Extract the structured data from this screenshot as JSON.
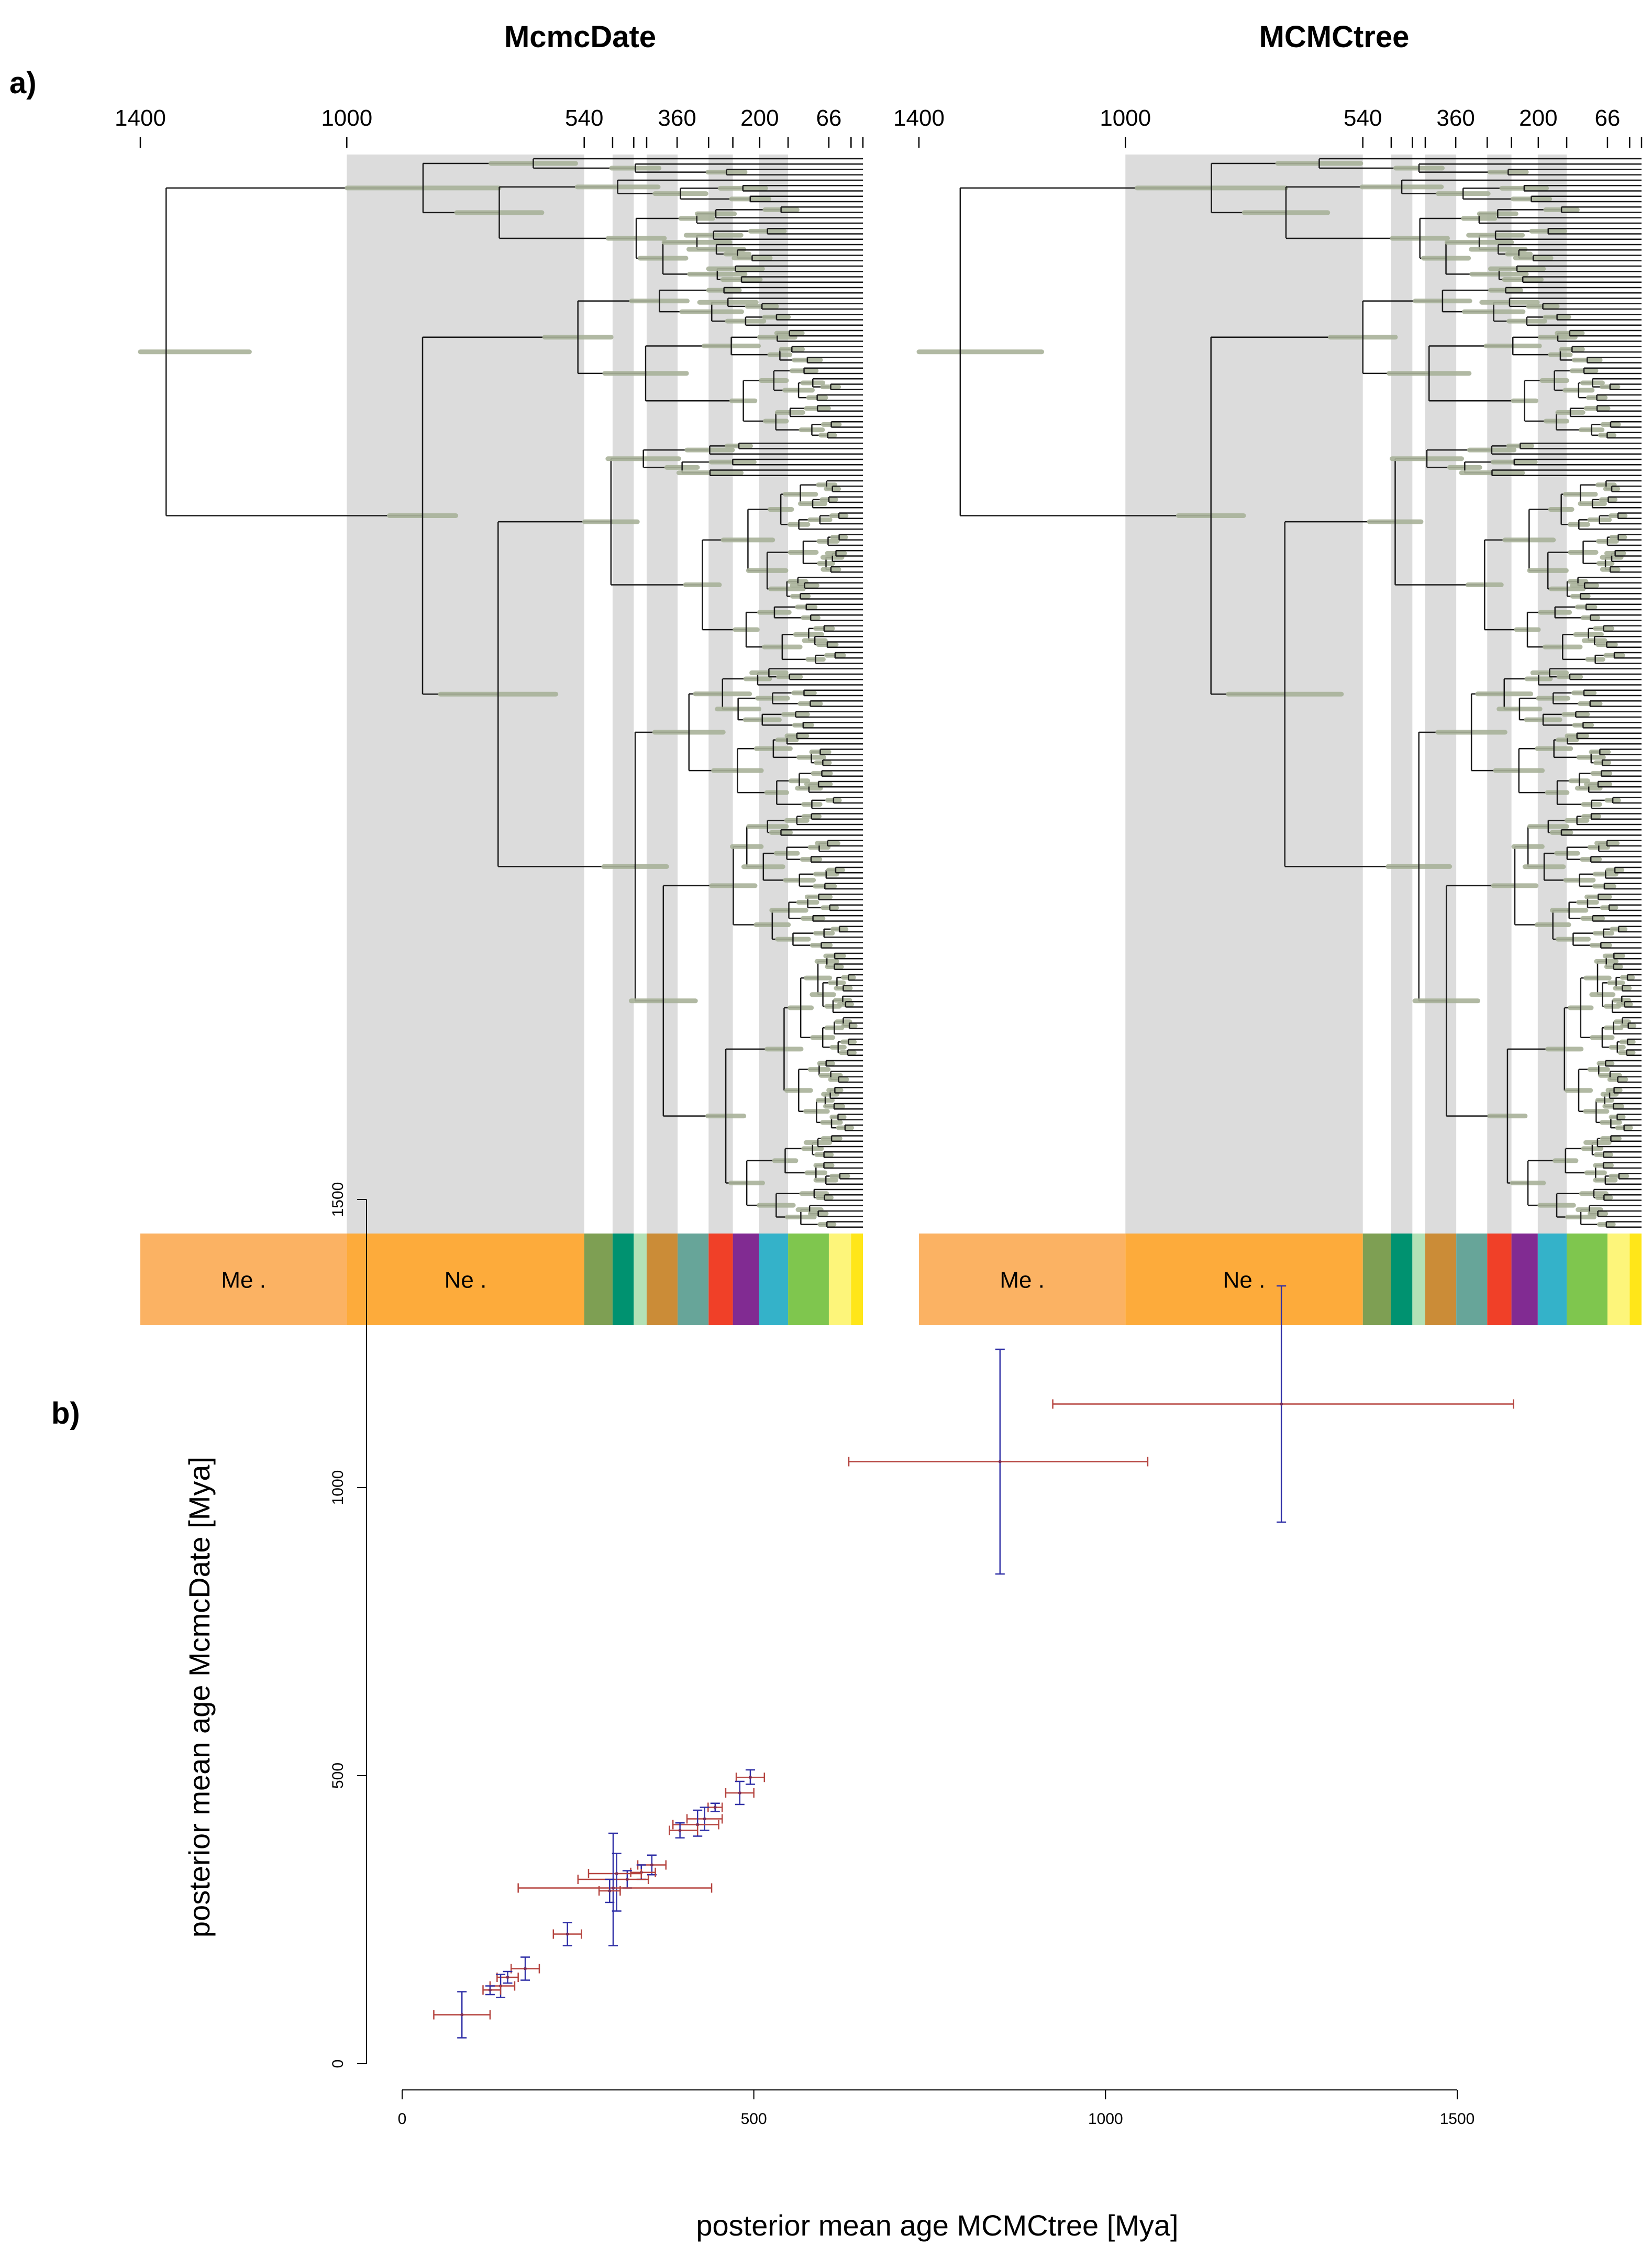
{
  "figure": {
    "panel_a_label": "a)",
    "panel_b_label": "b)"
  },
  "trees": [
    {
      "title": "McmcDate",
      "ticks": [
        {
          "age": 1400,
          "label": "1400"
        },
        {
          "age": 1000,
          "label": "1000"
        },
        {
          "age": 540,
          "label": "540"
        },
        {
          "age": 485,
          "label": ""
        },
        {
          "age": 444,
          "label": ""
        },
        {
          "age": 419,
          "label": ""
        },
        {
          "age": 360,
          "label": "360"
        },
        {
          "age": 299,
          "label": ""
        },
        {
          "age": 252,
          "label": ""
        },
        {
          "age": 200,
          "label": "200"
        },
        {
          "age": 145,
          "label": ""
        },
        {
          "age": 66,
          "label": "66"
        },
        {
          "age": 23,
          "label": ""
        },
        {
          "age": 0,
          "label": ""
        }
      ],
      "bands": [
        {
          "label": "Me .",
          "from": 1400,
          "to": 1000,
          "color": "#fbb263"
        },
        {
          "label": "Ne .",
          "from": 1000,
          "to": 540,
          "color": "#fdab3b"
        }
      ]
    },
    {
      "title": "MCMCtree",
      "ticks": [
        {
          "age": 1400,
          "label": "1400"
        },
        {
          "age": 1000,
          "label": "1000"
        },
        {
          "age": 540,
          "label": "540"
        },
        {
          "age": 485,
          "label": ""
        },
        {
          "age": 444,
          "label": ""
        },
        {
          "age": 419,
          "label": ""
        },
        {
          "age": 360,
          "label": "360"
        },
        {
          "age": 299,
          "label": ""
        },
        {
          "age": 252,
          "label": ""
        },
        {
          "age": 200,
          "label": "200"
        },
        {
          "age": 145,
          "label": ""
        },
        {
          "age": 66,
          "label": "66"
        },
        {
          "age": 23,
          "label": ""
        },
        {
          "age": 0,
          "label": ""
        }
      ],
      "bands": [
        {
          "label": "Me .",
          "from": 1400,
          "to": 1000,
          "color": "#fbb263"
        },
        {
          "label": "Ne .",
          "from": 1000,
          "to": 540,
          "color": "#fdab3b"
        }
      ]
    }
  ],
  "periods": [
    {
      "from": 540,
      "to": 485,
      "color": "#7e9f53"
    },
    {
      "from": 485,
      "to": 444,
      "color": "#009270"
    },
    {
      "from": 444,
      "to": 419,
      "color": "#b3e1b6"
    },
    {
      "from": 419,
      "to": 359,
      "color": "#cb8c37"
    },
    {
      "from": 359,
      "to": 299,
      "color": "#67a599"
    },
    {
      "from": 299,
      "to": 252,
      "color": "#f04028"
    },
    {
      "from": 252,
      "to": 201,
      "color": "#812b92"
    },
    {
      "from": 201,
      "to": 145,
      "color": "#34b2c9"
    },
    {
      "from": 145,
      "to": 66,
      "color": "#7fc64e"
    },
    {
      "from": 66,
      "to": 23,
      "color": "#fdf57a"
    },
    {
      "from": 23,
      "to": 0,
      "color": "#ffe619"
    }
  ],
  "grey_bands": [
    {
      "from": 1000,
      "to": 540
    },
    {
      "from": 485,
      "to": 444
    },
    {
      "from": 419,
      "to": 359
    },
    {
      "from": 299,
      "to": 252
    },
    {
      "from": 201,
      "to": 145
    }
  ],
  "colors": {
    "grey_band": "#dcdcdc",
    "branch": "#1a1a1a",
    "ci_bar": "#a9b29a",
    "scatter_x_err": "#b5443f",
    "scatter_y_err": "#2f2fa6",
    "scatter_point": "#7a2f5a"
  },
  "chart_data": {
    "type": "scatter",
    "title": "",
    "xlabel": "posterior mean age MCMCtree [Mya]",
    "ylabel": "posterior mean age McmcDate [Mya]",
    "xlim": [
      0,
      1500
    ],
    "ylim": [
      0,
      1500
    ],
    "xticks": [
      0,
      500,
      1000,
      1500
    ],
    "yticks": [
      0,
      500,
      1000,
      1500
    ],
    "points": [
      {
        "x": 1250,
        "y": 1145,
        "x_lo": 925,
        "x_hi": 1580,
        "y_lo": 940,
        "y_hi": 1350
      },
      {
        "x": 850,
        "y": 1045,
        "x_lo": 635,
        "x_hi": 1060,
        "y_lo": 850,
        "y_hi": 1240
      },
      {
        "x": 495,
        "y": 497,
        "x_lo": 475,
        "x_hi": 515,
        "y_lo": 485,
        "y_hi": 510
      },
      {
        "x": 480,
        "y": 470,
        "x_lo": 460,
        "x_hi": 500,
        "y_lo": 450,
        "y_hi": 490
      },
      {
        "x": 445,
        "y": 445,
        "x_lo": 435,
        "x_hi": 455,
        "y_lo": 438,
        "y_hi": 452
      },
      {
        "x": 430,
        "y": 425,
        "x_lo": 405,
        "x_hi": 455,
        "y_lo": 405,
        "y_hi": 445
      },
      {
        "x": 420,
        "y": 415,
        "x_lo": 385,
        "x_hi": 450,
        "y_lo": 395,
        "y_hi": 440
      },
      {
        "x": 395,
        "y": 405,
        "x_lo": 380,
        "x_hi": 420,
        "y_lo": 392,
        "y_hi": 418
      },
      {
        "x": 355,
        "y": 345,
        "x_lo": 335,
        "x_hi": 375,
        "y_lo": 328,
        "y_hi": 362
      },
      {
        "x": 340,
        "y": 332,
        "x_lo": 325,
        "x_hi": 360,
        "y_lo": 320,
        "y_hi": 345
      },
      {
        "x": 320,
        "y": 320,
        "x_lo": 250,
        "x_hi": 350,
        "y_lo": 305,
        "y_hi": 335
      },
      {
        "x": 305,
        "y": 330,
        "x_lo": 265,
        "x_hi": 340,
        "y_lo": 265,
        "y_hi": 365
      },
      {
        "x": 300,
        "y": 305,
        "x_lo": 165,
        "x_hi": 440,
        "y_lo": 205,
        "y_hi": 400
      },
      {
        "x": 295,
        "y": 300,
        "x_lo": 280,
        "x_hi": 310,
        "y_lo": 280,
        "y_hi": 320
      },
      {
        "x": 235,
        "y": 225,
        "x_lo": 215,
        "x_hi": 255,
        "y_lo": 205,
        "y_hi": 245
      },
      {
        "x": 175,
        "y": 165,
        "x_lo": 155,
        "x_hi": 195,
        "y_lo": 145,
        "y_hi": 185
      },
      {
        "x": 150,
        "y": 150,
        "x_lo": 135,
        "x_hi": 165,
        "y_lo": 140,
        "y_hi": 160
      },
      {
        "x": 140,
        "y": 135,
        "x_lo": 125,
        "x_hi": 160,
        "y_lo": 115,
        "y_hi": 155
      },
      {
        "x": 125,
        "y": 128,
        "x_lo": 115,
        "x_hi": 140,
        "y_lo": 120,
        "y_hi": 135
      },
      {
        "x": 85,
        "y": 85,
        "x_lo": 45,
        "x_hi": 125,
        "y_lo": 45,
        "y_hi": 125
      }
    ]
  }
}
